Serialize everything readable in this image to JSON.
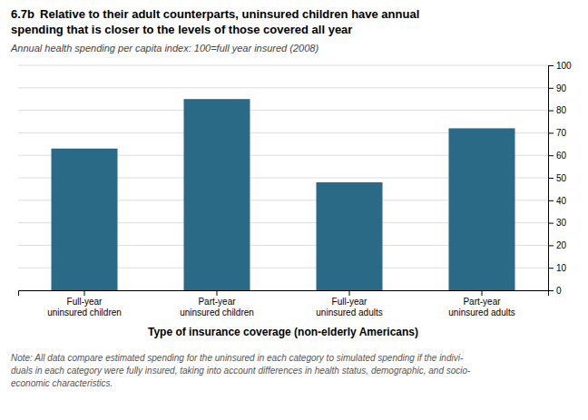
{
  "chart_data": {
    "type": "bar",
    "title": [
      "6.7b",
      "Relative to their adult counterparts, uninsured children have annual",
      "spending that is closer to the levels of those covered all year"
    ],
    "subtitle": "Annual health spending per capita index: 100=full year insured (2008)",
    "x_label": "Type of insurance coverage (non-elderly Americans)",
    "categories": [
      "Full-year\nuninsured children",
      "Part-year\nuninsured children",
      "Full-year\nuninsured adults",
      "Part-year\nuninsured adults"
    ],
    "values": [
      63,
      85,
      48,
      72
    ],
    "color": "#2B6A87",
    "ylim": [
      0,
      100
    ],
    "yticks": [
      0,
      10,
      20,
      30,
      40,
      50,
      60,
      70,
      80,
      90,
      100
    ],
    "grid": true,
    "annotations": [
      "Note: All data compare estimated spending for the uninsured in each category to simulated spending if the indivi-",
      "duals in each category were fully insured, taking into account differences in health status, demographic, and socio-",
      "economic characteristics."
    ]
  }
}
